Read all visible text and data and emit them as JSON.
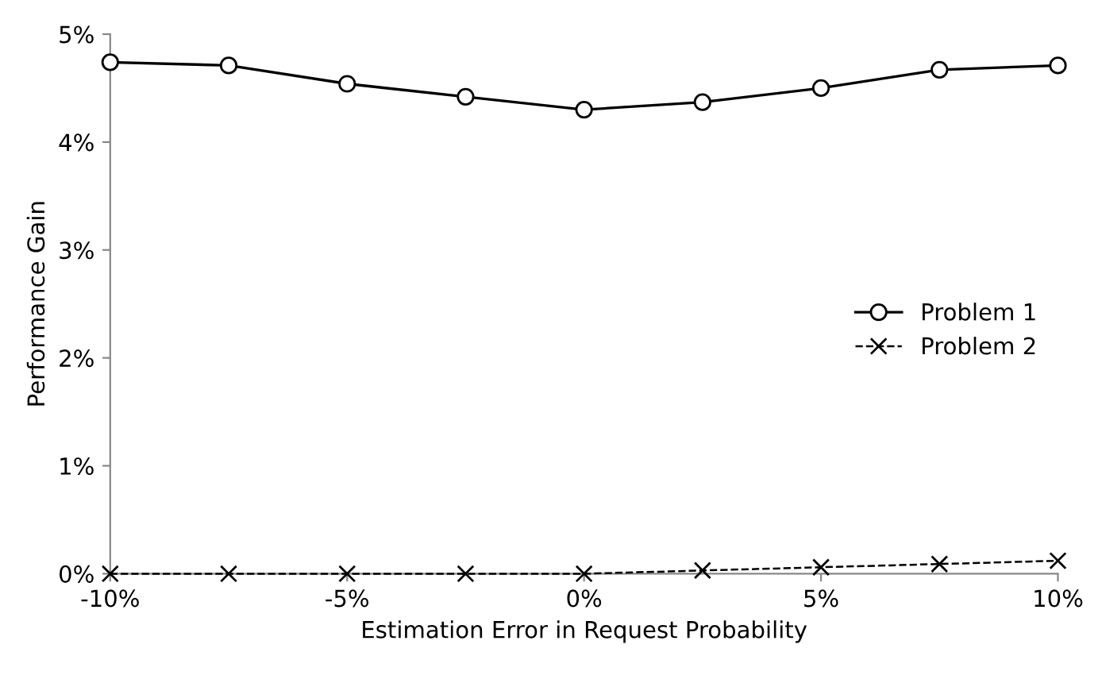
{
  "chart_data": {
    "type": "line",
    "xlabel": "Estimation Error in Request Probability",
    "ylabel": "Performance Gain",
    "x": [
      -10,
      -7.5,
      -5,
      -2.5,
      0,
      2.5,
      5,
      7.5,
      10
    ],
    "series": [
      {
        "name": "Problem 1",
        "color": "#000000",
        "marker": "circle",
        "line_style": "solid",
        "values": [
          4.74,
          4.71,
          4.54,
          4.42,
          4.3,
          4.37,
          4.5,
          4.67,
          4.71
        ]
      },
      {
        "name": "Problem 2",
        "color": "#000000",
        "marker": "cross",
        "line_style": "dashed",
        "values": [
          0,
          0,
          0,
          0,
          0,
          0.03,
          0.06,
          0.09,
          0.12
        ]
      }
    ],
    "xlim": [
      -10,
      10
    ],
    "ylim": [
      0,
      5
    ],
    "xticks": [
      {
        "value": -10,
        "label": "-10%"
      },
      {
        "value": -5,
        "label": "-5%"
      },
      {
        "value": 0,
        "label": "0%"
      },
      {
        "value": 5,
        "label": "5%"
      },
      {
        "value": 10,
        "label": "10%"
      }
    ],
    "yticks": [
      {
        "value": 0,
        "label": "0%"
      },
      {
        "value": 1,
        "label": "1%"
      },
      {
        "value": 2,
        "label": "2%"
      },
      {
        "value": 3,
        "label": "3%"
      },
      {
        "value": 4,
        "label": "4%"
      },
      {
        "value": 5,
        "label": "5%"
      }
    ],
    "grid": false,
    "legend": "right"
  }
}
